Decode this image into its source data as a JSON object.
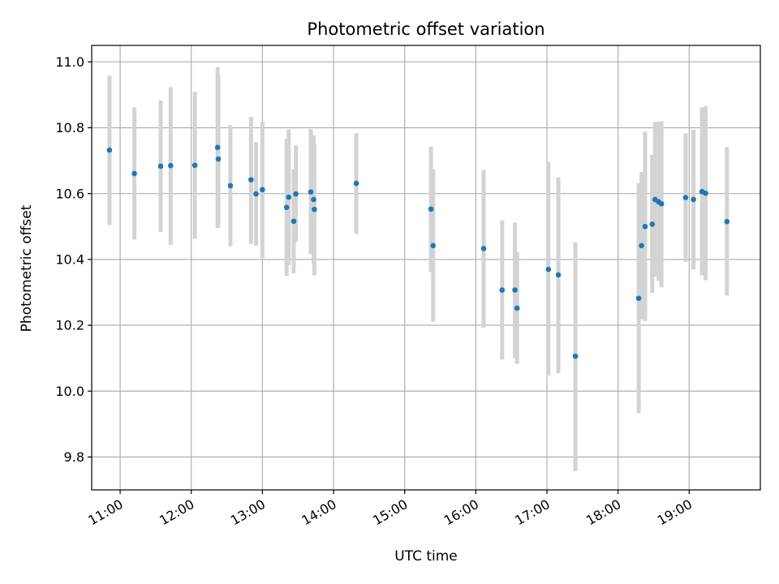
{
  "chart_data": {
    "type": "scatter",
    "title": "Photometric offset variation",
    "xlabel": "UTC time",
    "ylabel": "Photometric offset",
    "x_unit": "hours UTC",
    "xlim": [
      10.6,
      20.0
    ],
    "ylim": [
      9.7,
      11.05
    ],
    "x_ticks": [
      {
        "value": 11,
        "label": "11:00"
      },
      {
        "value": 12,
        "label": "12:00"
      },
      {
        "value": 13,
        "label": "13:00"
      },
      {
        "value": 14,
        "label": "14:00"
      },
      {
        "value": 15,
        "label": "15:00"
      },
      {
        "value": 16,
        "label": "16:00"
      },
      {
        "value": 17,
        "label": "17:00"
      },
      {
        "value": 18,
        "label": "18:00"
      },
      {
        "value": 19,
        "label": "19:00"
      }
    ],
    "y_ticks": [
      {
        "value": 9.8,
        "label": "9.8"
      },
      {
        "value": 10.0,
        "label": "10.0"
      },
      {
        "value": 10.2,
        "label": "10.2"
      },
      {
        "value": 10.4,
        "label": "10.4"
      },
      {
        "value": 10.6,
        "label": "10.6"
      },
      {
        "value": 10.8,
        "label": "10.8"
      },
      {
        "value": 11.0,
        "label": "11.0"
      }
    ],
    "grid": true,
    "point_color": "#1f77b4",
    "errorbar_color": "#d3d3d3",
    "points": [
      {
        "x": 10.85,
        "y": 10.732,
        "ylo": 10.505,
        "yhi": 10.958
      },
      {
        "x": 11.2,
        "y": 10.661,
        "ylo": 10.46,
        "yhi": 10.862
      },
      {
        "x": 11.57,
        "y": 10.683,
        "ylo": 10.483,
        "yhi": 10.883
      },
      {
        "x": 11.71,
        "y": 10.685,
        "ylo": 10.444,
        "yhi": 10.923
      },
      {
        "x": 12.05,
        "y": 10.686,
        "ylo": 10.463,
        "yhi": 10.909
      },
      {
        "x": 12.37,
        "y": 10.74,
        "ylo": 10.495,
        "yhi": 10.984
      },
      {
        "x": 12.38,
        "y": 10.705,
        "ylo": 10.496,
        "yhi": 10.96
      },
      {
        "x": 12.55,
        "y": 10.624,
        "ylo": 10.44,
        "yhi": 10.808
      },
      {
        "x": 12.84,
        "y": 10.642,
        "ylo": 10.447,
        "yhi": 10.833
      },
      {
        "x": 12.91,
        "y": 10.599,
        "ylo": 10.442,
        "yhi": 10.756
      },
      {
        "x": 13.0,
        "y": 10.612,
        "ylo": 10.405,
        "yhi": 10.818
      },
      {
        "x": 13.34,
        "y": 10.558,
        "ylo": 10.35,
        "yhi": 10.766
      },
      {
        "x": 13.37,
        "y": 10.589,
        "ylo": 10.382,
        "yhi": 10.795
      },
      {
        "x": 13.44,
        "y": 10.516,
        "ylo": 10.358,
        "yhi": 10.674
      },
      {
        "x": 13.47,
        "y": 10.599,
        "ylo": 10.454,
        "yhi": 10.746
      },
      {
        "x": 13.68,
        "y": 10.605,
        "ylo": 10.416,
        "yhi": 10.796
      },
      {
        "x": 13.72,
        "y": 10.582,
        "ylo": 10.387,
        "yhi": 10.777
      },
      {
        "x": 13.73,
        "y": 10.552,
        "ylo": 10.352,
        "yhi": 10.752
      },
      {
        "x": 14.32,
        "y": 10.631,
        "ylo": 10.477,
        "yhi": 10.783
      },
      {
        "x": 15.37,
        "y": 10.553,
        "ylo": 10.362,
        "yhi": 10.743
      },
      {
        "x": 15.4,
        "y": 10.442,
        "ylo": 10.211,
        "yhi": 10.674
      },
      {
        "x": 16.11,
        "y": 10.433,
        "ylo": 10.193,
        "yhi": 10.672
      },
      {
        "x": 16.37,
        "y": 10.307,
        "ylo": 10.096,
        "yhi": 10.519
      },
      {
        "x": 16.55,
        "y": 10.307,
        "ylo": 10.1,
        "yhi": 10.512
      },
      {
        "x": 16.58,
        "y": 10.252,
        "ylo": 10.083,
        "yhi": 10.422
      },
      {
        "x": 17.02,
        "y": 10.37,
        "ylo": 10.047,
        "yhi": 10.696
      },
      {
        "x": 17.16,
        "y": 10.353,
        "ylo": 10.054,
        "yhi": 10.649
      },
      {
        "x": 17.4,
        "y": 10.106,
        "ylo": 9.757,
        "yhi": 10.452
      },
      {
        "x": 18.29,
        "y": 10.282,
        "ylo": 9.933,
        "yhi": 10.632
      },
      {
        "x": 18.33,
        "y": 10.442,
        "ylo": 10.218,
        "yhi": 10.666
      },
      {
        "x": 18.38,
        "y": 10.5,
        "ylo": 10.213,
        "yhi": 10.788
      },
      {
        "x": 18.48,
        "y": 10.507,
        "ylo": 10.298,
        "yhi": 10.718
      },
      {
        "x": 18.52,
        "y": 10.582,
        "ylo": 10.347,
        "yhi": 10.818
      },
      {
        "x": 18.57,
        "y": 10.575,
        "ylo": 10.335,
        "yhi": 10.818
      },
      {
        "x": 18.61,
        "y": 10.569,
        "ylo": 10.315,
        "yhi": 10.82
      },
      {
        "x": 18.95,
        "y": 10.588,
        "ylo": 10.393,
        "yhi": 10.783
      },
      {
        "x": 19.06,
        "y": 10.582,
        "ylo": 10.369,
        "yhi": 10.794
      },
      {
        "x": 19.18,
        "y": 10.606,
        "ylo": 10.352,
        "yhi": 10.862
      },
      {
        "x": 19.23,
        "y": 10.601,
        "ylo": 10.337,
        "yhi": 10.866
      },
      {
        "x": 19.53,
        "y": 10.515,
        "ylo": 10.29,
        "yhi": 10.741
      }
    ]
  }
}
